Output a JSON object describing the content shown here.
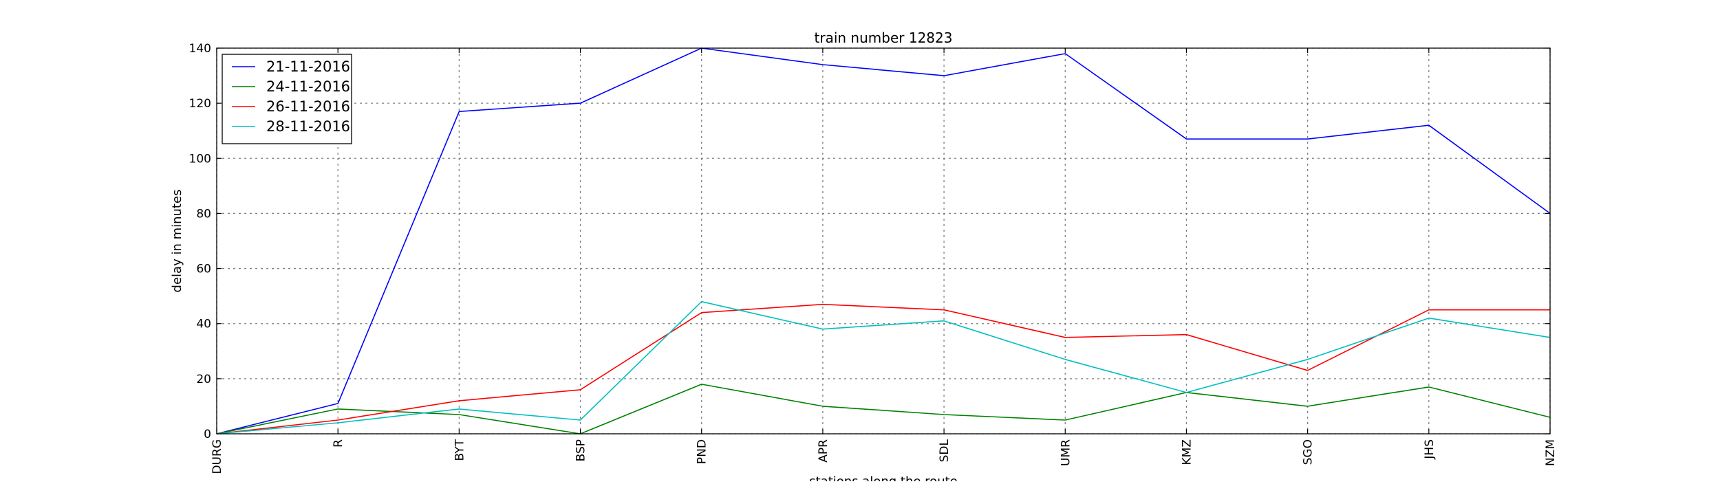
{
  "chart_data": {
    "type": "line",
    "title": "train number 12823",
    "xlabel": "stations along the route",
    "ylabel": "delay in minutes",
    "categories": [
      "DURG",
      "R",
      "BYT",
      "BSP",
      "PND",
      "APR",
      "SDL",
      "UMR",
      "KMZ",
      "SGO",
      "JHS",
      "NZM"
    ],
    "ylim": [
      0,
      140
    ],
    "yticks": [
      0,
      20,
      40,
      60,
      80,
      100,
      120,
      140
    ],
    "grid": true,
    "legend_position": "top-left",
    "series": [
      {
        "name": "21-11-2016",
        "color": "#0000ff",
        "values": [
          0,
          11,
          117,
          120,
          140,
          134,
          130,
          138,
          107,
          107,
          112,
          80
        ]
      },
      {
        "name": "24-11-2016",
        "color": "#008000",
        "values": [
          0,
          9,
          7,
          0,
          18,
          10,
          7,
          5,
          15,
          10,
          17,
          6
        ]
      },
      {
        "name": "26-11-2016",
        "color": "#ff0000",
        "values": [
          0,
          5,
          12,
          16,
          44,
          47,
          45,
          35,
          36,
          23,
          45,
          45
        ]
      },
      {
        "name": "28-11-2016",
        "color": "#00bfbf",
        "values": [
          0,
          4,
          9,
          5,
          48,
          38,
          41,
          27,
          15,
          27,
          42,
          35
        ]
      }
    ]
  }
}
